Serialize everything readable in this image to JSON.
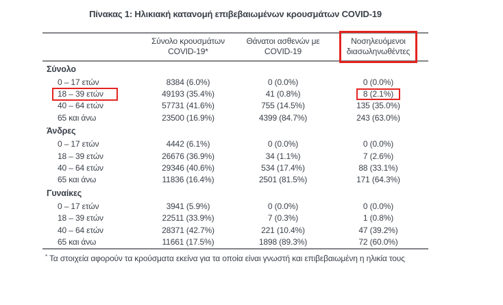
{
  "title": "Πίνακας 1: Ηλικιακή κατανομή επιβεβαιωμένων κρουσμάτων COVID-19",
  "highlight_color": "#e32420",
  "table": {
    "col_headers": [
      {
        "line1": "Σύνολο κρουσμάτων",
        "line2": "COVID-19*",
        "highlighted": false
      },
      {
        "line1": "Θάνατοι ασθενών με",
        "line2": "COVID-19",
        "highlighted": false
      },
      {
        "line1": "Νοσηλευόμενοι",
        "line2": "διασωληνωθέντες",
        "highlighted": true
      }
    ],
    "sections": [
      {
        "label": "Σύνολο",
        "rows": [
          {
            "age": "0 – 17 ετών",
            "cases": "8384 (6.0%)",
            "deaths": "0 (0.0%)",
            "intubated": "0 (0.0%)"
          },
          {
            "age": "18 – 39 ετών",
            "cases": "49193 (35.4%)",
            "deaths": "41 (0.8%)",
            "intubated": "8 (2.1%)",
            "age_highlighted": true,
            "intubated_highlighted": true
          },
          {
            "age": "40 – 64 ετών",
            "cases": "57731 (41.6%)",
            "deaths": "755 (14.5%)",
            "intubated": "135 (35.0%)"
          },
          {
            "age": "65 και άνω",
            "cases": "23500 (16.9%)",
            "deaths": "4399 (84.7%)",
            "intubated": "243 (63.0%)"
          }
        ]
      },
      {
        "label": "Άνδρες",
        "rows": [
          {
            "age": "0 – 17 ετών",
            "cases": "4442 (6.1%)",
            "deaths": "0 (0.0%)",
            "intubated": "0 (0.0%)"
          },
          {
            "age": "18 – 39 ετών",
            "cases": "26676 (36.9%)",
            "deaths": "34 (1.1%)",
            "intubated": "7 (2.6%)"
          },
          {
            "age": "40 – 64 ετών",
            "cases": "29346 (40.6%)",
            "deaths": "534 (17.4%)",
            "intubated": "88 (33.1%)"
          },
          {
            "age": "65 και άνω",
            "cases": "11836 (16.4%)",
            "deaths": "2501 (81.5%)",
            "intubated": "171 (64.3%)"
          }
        ]
      },
      {
        "label": "Γυναίκες",
        "rows": [
          {
            "age": "0 – 17 ετών",
            "cases": "3941 (5.9%)",
            "deaths": "0 (0.0%)",
            "intubated": "0 (0.0%)"
          },
          {
            "age": "18 – 39 ετών",
            "cases": "22511 (33.9%)",
            "deaths": "7 (0.3%)",
            "intubated": "1 (0.8%)"
          },
          {
            "age": "40 – 64 ετών",
            "cases": "28371 (42.7%)",
            "deaths": "221 (10.4%)",
            "intubated": "47 (39.2%)"
          },
          {
            "age": "65 και άνω",
            "cases": "11661 (17.5%)",
            "deaths": "1898 (89.3%)",
            "intubated": "72 (60.0%)"
          }
        ]
      }
    ],
    "footnote_marker": "*",
    "footnote": "Τα στοιχεία αφορούν τα κρούσματα εκείνα για τα οποία είναι γνωστή και επιβεβαιωμένη η ηλικία τους"
  }
}
